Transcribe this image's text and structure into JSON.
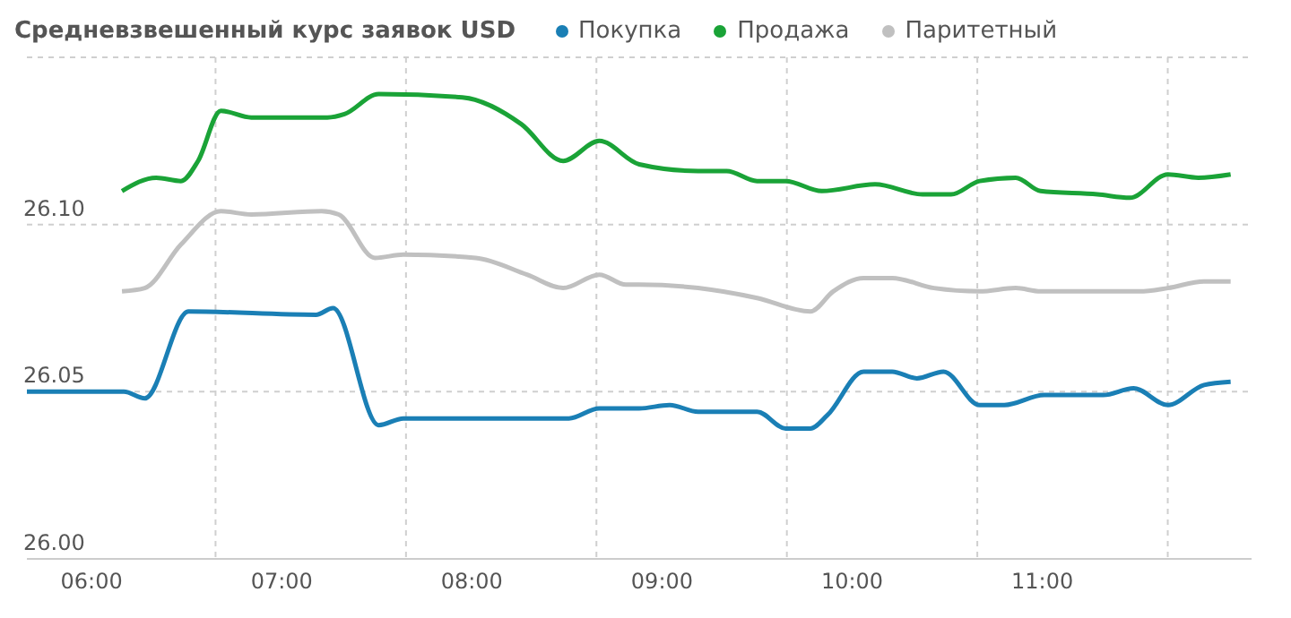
{
  "chart_data": {
    "type": "line",
    "title": "Средневзвешенный курс заявок USD",
    "legend": "top",
    "grid": true,
    "marker": "none",
    "line_style": "solid",
    "xlim": [
      5.66,
      12.1
    ],
    "xticks": [
      {
        "value": 6,
        "label": "06:00"
      },
      {
        "value": 7,
        "label": "07:00"
      },
      {
        "value": 8,
        "label": "08:00"
      },
      {
        "value": 9,
        "label": "09:00"
      },
      {
        "value": 10,
        "label": "10:00"
      },
      {
        "value": 11,
        "label": "11:00"
      },
      {
        "value": 6.66,
        "label": null
      },
      {
        "value": 7.66,
        "label": null
      },
      {
        "value": 8.66,
        "label": null
      },
      {
        "value": 9.66,
        "label": null
      },
      {
        "value": 10.66,
        "label": null
      },
      {
        "value": 11.66,
        "label": null
      }
    ],
    "ylim": [
      26.0,
      26.15
    ],
    "yticks": [
      {
        "value": 26.0,
        "label": "26.00"
      },
      {
        "value": 26.05,
        "label": "26.05"
      },
      {
        "value": 26.1,
        "label": "26.10"
      }
    ],
    "series": [
      {
        "name": "Покупка",
        "color": "#1a7fb5",
        "x": [
          5.66,
          6.17,
          6.28,
          6.51,
          7.18,
          7.27,
          7.51,
          7.64,
          8.23,
          8.51,
          8.67,
          8.88,
          9.04,
          9.19,
          9.5,
          9.65,
          9.78,
          9.87,
          10.06,
          10.21,
          10.34,
          10.48,
          10.67,
          10.8,
          11.01,
          11.32,
          11.48,
          11.66,
          11.85,
          11.99
        ],
        "values": [
          26.05,
          26.05,
          26.048,
          26.074,
          26.073,
          26.075,
          26.04,
          26.042,
          26.042,
          26.042,
          26.045,
          26.045,
          26.046,
          26.044,
          26.044,
          26.039,
          26.039,
          26.043,
          26.056,
          26.056,
          26.054,
          26.056,
          26.046,
          26.046,
          26.049,
          26.049,
          26.051,
          26.046,
          26.052,
          26.053
        ]
      },
      {
        "name": "Продажа",
        "color": "#1aa337",
        "x": [
          6.16,
          6.34,
          6.47,
          6.56,
          6.68,
          6.84,
          7.24,
          7.33,
          7.51,
          7.95,
          8.26,
          8.48,
          8.67,
          8.88,
          9.19,
          9.34,
          9.5,
          9.65,
          9.84,
          10.12,
          10.37,
          10.52,
          10.67,
          10.86,
          10.99,
          11.29,
          11.46,
          11.66,
          11.82,
          11.99
        ],
        "values": [
          26.11,
          26.114,
          26.113,
          26.119,
          26.134,
          26.132,
          26.132,
          26.133,
          26.139,
          26.138,
          26.13,
          26.119,
          26.125,
          26.118,
          26.116,
          26.116,
          26.113,
          26.113,
          26.11,
          26.112,
          26.109,
          26.109,
          26.113,
          26.114,
          26.11,
          26.109,
          26.108,
          26.115,
          26.114,
          26.115
        ]
      },
      {
        "name": "Паритетный",
        "color": "#c0c0c0",
        "x": [
          6.16,
          6.28,
          6.47,
          6.68,
          6.84,
          7.21,
          7.3,
          7.49,
          7.64,
          8.02,
          8.29,
          8.48,
          8.67,
          8.81,
          8.88,
          9.19,
          9.5,
          9.78,
          9.9,
          10.06,
          10.21,
          10.43,
          10.67,
          10.86,
          10.99,
          11.51,
          11.66,
          11.85,
          11.99
        ],
        "values": [
          26.08,
          26.081,
          26.094,
          26.104,
          26.103,
          26.104,
          26.103,
          26.09,
          26.091,
          26.09,
          26.085,
          26.081,
          26.085,
          26.082,
          26.082,
          26.081,
          26.078,
          26.074,
          26.08,
          26.084,
          26.084,
          26.081,
          26.08,
          26.081,
          26.08,
          26.08,
          26.081,
          26.083,
          26.083
        ]
      }
    ]
  }
}
